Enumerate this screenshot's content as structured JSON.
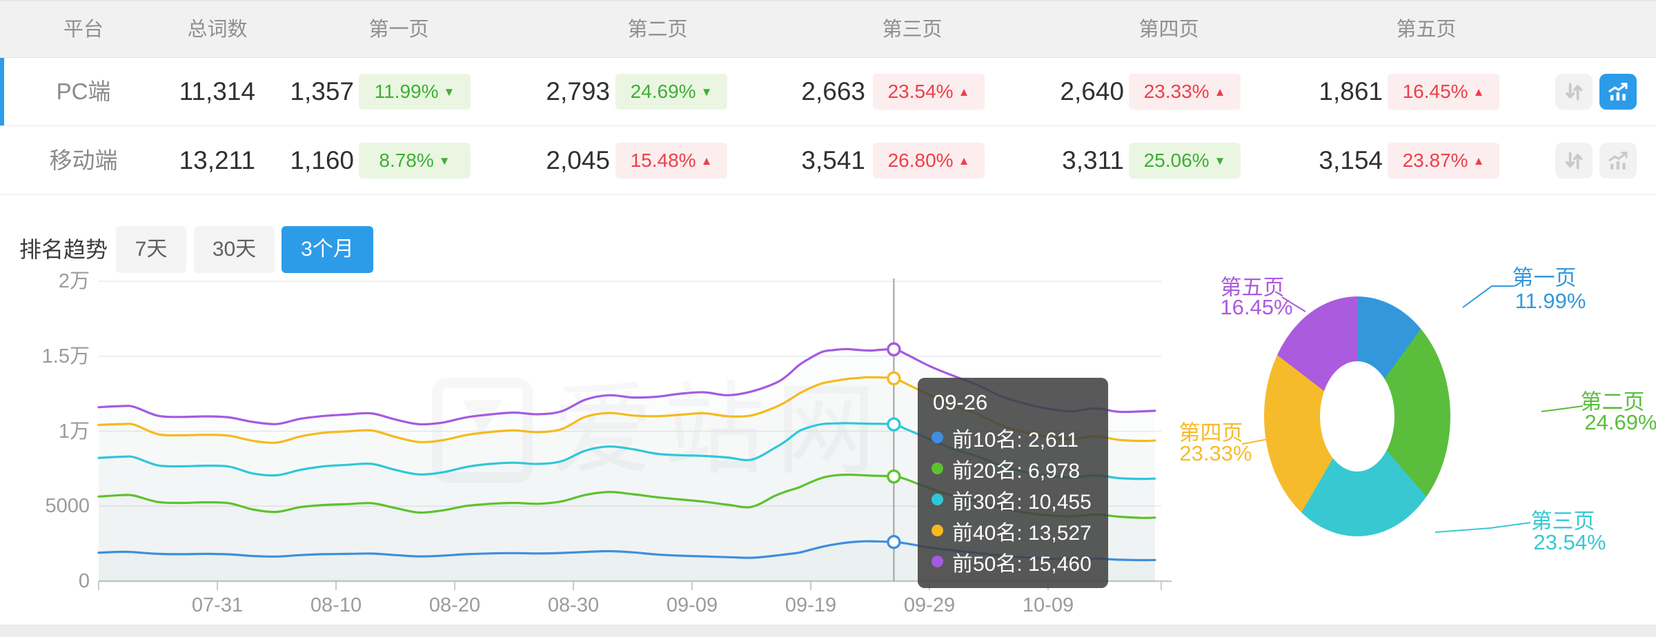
{
  "table": {
    "columns": [
      "平台",
      "总词数",
      "第一页",
      "第二页",
      "第三页",
      "第四页",
      "第五页"
    ],
    "rows": [
      {
        "platform": "PC端",
        "total": "11,314",
        "active": true,
        "pages": [
          {
            "count": "1,357",
            "pct": "11.99%",
            "dir": "down"
          },
          {
            "count": "2,793",
            "pct": "24.69%",
            "dir": "down"
          },
          {
            "count": "2,663",
            "pct": "23.54%",
            "dir": "up"
          },
          {
            "count": "2,640",
            "pct": "23.33%",
            "dir": "up"
          },
          {
            "count": "1,861",
            "pct": "16.45%",
            "dir": "up"
          }
        ],
        "actions": [
          {
            "icon": "compare-arrows-icon",
            "active": false
          },
          {
            "icon": "trend-chart-icon",
            "active": true
          }
        ]
      },
      {
        "platform": "移动端",
        "total": "13,211",
        "active": false,
        "pages": [
          {
            "count": "1,160",
            "pct": "8.78%",
            "dir": "down"
          },
          {
            "count": "2,045",
            "pct": "15.48%",
            "dir": "up"
          },
          {
            "count": "3,541",
            "pct": "26.80%",
            "dir": "up"
          },
          {
            "count": "3,311",
            "pct": "25.06%",
            "dir": "down"
          },
          {
            "count": "3,154",
            "pct": "23.87%",
            "dir": "up"
          }
        ],
        "actions": [
          {
            "icon": "compare-arrows-icon",
            "active": false
          },
          {
            "icon": "trend-chart-icon",
            "active": false
          }
        ]
      }
    ]
  },
  "trend_section": {
    "title": "排名趋势",
    "tabs": [
      {
        "label": "7天",
        "active": false
      },
      {
        "label": "30天",
        "active": false
      },
      {
        "label": "3个月",
        "active": true
      }
    ]
  },
  "colors": {
    "accent": "#2D9CE8",
    "up_red": "#EC4049",
    "up_bg": "#FCEDEE",
    "down_green": "#3DAF35",
    "down_bg": "#EAF6E2",
    "icon_gray": "#C9C9C9"
  },
  "watermark": {
    "text": "爱站网"
  },
  "tooltip": {
    "title": "09-26",
    "items": [
      {
        "label": "前10名",
        "value": "2,611",
        "color": "#3E8EDE"
      },
      {
        "label": "前20名",
        "value": "6,978",
        "color": "#5CC22F"
      },
      {
        "label": "前30名",
        "value": "10,455",
        "color": "#2EC7DA"
      },
      {
        "label": "前40名",
        "value": "13,527",
        "color": "#F6B91E"
      },
      {
        "label": "前50名",
        "value": "15,460",
        "color": "#A35BE0"
      }
    ]
  },
  "chart_data": [
    {
      "type": "line",
      "title": "排名趋势 (3个月)",
      "x_start_date": "07-21",
      "x_tick_labels": [
        "07-31",
        "08-10",
        "08-20",
        "08-30",
        "09-09",
        "09-19",
        "09-29",
        "10-09"
      ],
      "x_tick_days": [
        10,
        20,
        30,
        40,
        50,
        60,
        70,
        80
      ],
      "y_ticks": [
        {
          "label": "0",
          "value": 0
        },
        {
          "label": "5000",
          "value": 5000
        },
        {
          "label": "1万",
          "value": 10000
        },
        {
          "label": "1.5万",
          "value": 15000
        },
        {
          "label": "2万",
          "value": 20000
        }
      ],
      "ylim": [
        0,
        20000
      ],
      "grid": true,
      "days": [
        0,
        2,
        3,
        5,
        7,
        9,
        11,
        13,
        15,
        17,
        19,
        21,
        23,
        25,
        27,
        29,
        31,
        33,
        35,
        37,
        39,
        41,
        43,
        45,
        47,
        49,
        51,
        53,
        55,
        57,
        58,
        59,
        60,
        61,
        62,
        63,
        64,
        65,
        67,
        68,
        70,
        72,
        74,
        76,
        78,
        80,
        82,
        84,
        86,
        88,
        89
      ],
      "series": [
        {
          "name": "前10名",
          "color": "#3E8EDE",
          "values": [
            1900,
            1960,
            1930,
            1820,
            1800,
            1820,
            1790,
            1680,
            1640,
            1740,
            1800,
            1820,
            1840,
            1740,
            1650,
            1700,
            1800,
            1850,
            1870,
            1850,
            1880,
            1950,
            2000,
            1920,
            1780,
            1700,
            1650,
            1600,
            1560,
            1700,
            1800,
            1900,
            2100,
            2300,
            2450,
            2570,
            2640,
            2660,
            2611,
            2520,
            2250,
            2050,
            1880,
            1710,
            1580,
            1500,
            1450,
            1500,
            1430,
            1400,
            1410
          ]
        },
        {
          "name": "前20名",
          "color": "#5CC22F",
          "values": [
            5640,
            5740,
            5700,
            5280,
            5220,
            5260,
            5200,
            4780,
            4620,
            4940,
            5080,
            5140,
            5200,
            4880,
            4580,
            4720,
            5020,
            5160,
            5220,
            5160,
            5320,
            5750,
            5950,
            5800,
            5600,
            5450,
            5300,
            5100,
            4950,
            5700,
            6000,
            6250,
            6600,
            6900,
            7050,
            7100,
            7080,
            7040,
            6978,
            6800,
            6200,
            5680,
            5320,
            4880,
            4580,
            4400,
            4320,
            4440,
            4300,
            4220,
            4240
          ]
        },
        {
          "name": "前30名",
          "color": "#2EC7DA",
          "values": [
            8220,
            8300,
            8260,
            7720,
            7660,
            7700,
            7640,
            7180,
            7060,
            7420,
            7660,
            7760,
            7820,
            7420,
            7120,
            7260,
            7620,
            7820,
            7900,
            7820,
            8000,
            8700,
            8980,
            8800,
            8500,
            8400,
            8350,
            8250,
            8100,
            8900,
            9400,
            10000,
            10300,
            10480,
            10520,
            10540,
            10520,
            10500,
            10455,
            10150,
            9480,
            8820,
            8330,
            7700,
            7280,
            7020,
            6900,
            7060,
            6870,
            6820,
            6840
          ]
        },
        {
          "name": "前40名",
          "color": "#F6B91E",
          "values": [
            10420,
            10480,
            10430,
            9800,
            9730,
            9760,
            9700,
            9360,
            9240,
            9650,
            9900,
            9990,
            10050,
            9620,
            9280,
            9400,
            9750,
            9950,
            10050,
            9940,
            10140,
            10950,
            11220,
            11050,
            11000,
            11100,
            11200,
            11000,
            11050,
            11600,
            12000,
            12500,
            12900,
            13200,
            13350,
            13480,
            13550,
            13600,
            13527,
            13180,
            12420,
            11700,
            11150,
            10420,
            9940,
            9620,
            9470,
            9660,
            9420,
            9350,
            9380
          ]
        },
        {
          "name": "前50名",
          "color": "#A35BE0",
          "values": [
            11600,
            11680,
            11620,
            11030,
            10950,
            10990,
            10920,
            10620,
            10480,
            10830,
            11020,
            11120,
            11190,
            10780,
            10470,
            10580,
            10930,
            11120,
            11240,
            11130,
            11330,
            12100,
            12400,
            12250,
            12300,
            12500,
            12600,
            12400,
            12650,
            13200,
            13700,
            14400,
            14900,
            15300,
            15420,
            15480,
            15420,
            15380,
            15460,
            15150,
            14350,
            13700,
            13100,
            12350,
            11850,
            11500,
            11330,
            11520,
            11290,
            11330,
            11360
          ]
        }
      ],
      "hover": {
        "date": "09-26",
        "day": 67,
        "values": [
          2611,
          6978,
          10455,
          13527,
          15460
        ]
      },
      "legend_position": "tooltip-only"
    },
    {
      "type": "pie",
      "donut": true,
      "slices": [
        {
          "label": "第一页",
          "pct": 11.99,
          "pct_label": "11.99%",
          "color": "#3398DB"
        },
        {
          "label": "第二页",
          "pct": 24.69,
          "pct_label": "24.69%",
          "color": "#5ABE3C"
        },
        {
          "label": "第三页",
          "pct": 23.54,
          "pct_label": "23.54%",
          "color": "#38C8D2"
        },
        {
          "label": "第四页",
          "pct": 23.33,
          "pct_label": "23.33%",
          "color": "#F5BB2B"
        },
        {
          "label": "第五页",
          "pct": 16.45,
          "pct_label": "16.45%",
          "color": "#AB5BDD"
        }
      ]
    }
  ]
}
